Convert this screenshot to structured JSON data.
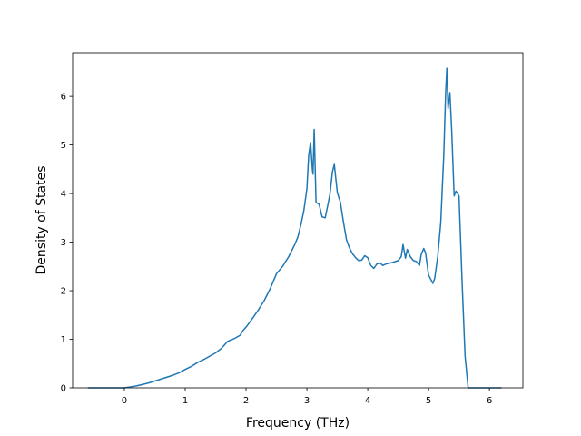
{
  "chart_data": {
    "type": "line",
    "title": "",
    "xlabel": "Frequency (THz)",
    "ylabel": "Density of States",
    "xlim": [
      -0.85,
      6.55
    ],
    "ylim": [
      0,
      6.9
    ],
    "xticks": [
      0,
      1,
      2,
      3,
      4,
      5,
      6
    ],
    "yticks": [
      0,
      1,
      2,
      3,
      4,
      5,
      6
    ],
    "grid": false,
    "legend": "none",
    "color": "#1f77b4",
    "series": [
      {
        "x": [
          -0.6,
          -0.3,
          0.0,
          0.1,
          0.2,
          0.3,
          0.4,
          0.5,
          0.6,
          0.7,
          0.8,
          0.9,
          1.0,
          1.1,
          1.2,
          1.3,
          1.4,
          1.5,
          1.6,
          1.7,
          1.8,
          1.9,
          1.95,
          2.0,
          2.1,
          2.2,
          2.3,
          2.4,
          2.45,
          2.5,
          2.6,
          2.7,
          2.8,
          2.85,
          2.9,
          2.95,
          3.0,
          3.03,
          3.06,
          3.09,
          3.1,
          3.12,
          3.15,
          3.2,
          3.25,
          3.3,
          3.35,
          3.38,
          3.42,
          3.45,
          3.5,
          3.55,
          3.6,
          3.65,
          3.7,
          3.75,
          3.8,
          3.85,
          3.9,
          3.95,
          4.0,
          4.05,
          4.1,
          4.15,
          4.2,
          4.25,
          4.3,
          4.4,
          4.5,
          4.55,
          4.58,
          4.62,
          4.65,
          4.7,
          4.75,
          4.8,
          4.85,
          4.88,
          4.92,
          4.95,
          5.0,
          5.03,
          5.07,
          5.1,
          5.15,
          5.2,
          5.25,
          5.28,
          5.3,
          5.32,
          5.35,
          5.38,
          5.42,
          5.45,
          5.5,
          5.55,
          5.6,
          5.65,
          5.7,
          6.2
        ],
        "y": [
          0.0,
          0.0,
          0.0,
          0.02,
          0.04,
          0.07,
          0.1,
          0.14,
          0.18,
          0.22,
          0.26,
          0.31,
          0.38,
          0.44,
          0.52,
          0.58,
          0.65,
          0.72,
          0.82,
          0.96,
          1.01,
          1.08,
          1.18,
          1.25,
          1.42,
          1.6,
          1.8,
          2.05,
          2.2,
          2.35,
          2.5,
          2.7,
          2.95,
          3.1,
          3.35,
          3.65,
          4.1,
          4.8,
          5.05,
          4.5,
          4.4,
          5.32,
          3.82,
          3.78,
          3.52,
          3.5,
          3.8,
          4.0,
          4.45,
          4.6,
          4.02,
          3.82,
          3.42,
          3.05,
          2.88,
          2.76,
          2.68,
          2.62,
          2.63,
          2.72,
          2.68,
          2.52,
          2.46,
          2.55,
          2.57,
          2.52,
          2.55,
          2.58,
          2.62,
          2.7,
          2.95,
          2.67,
          2.85,
          2.7,
          2.62,
          2.6,
          2.52,
          2.75,
          2.87,
          2.78,
          2.32,
          2.25,
          2.15,
          2.25,
          2.7,
          3.4,
          4.8,
          6.05,
          6.58,
          5.75,
          6.08,
          5.3,
          3.95,
          4.05,
          3.95,
          2.2,
          0.65,
          0.0,
          0.0,
          0.0
        ]
      }
    ]
  }
}
